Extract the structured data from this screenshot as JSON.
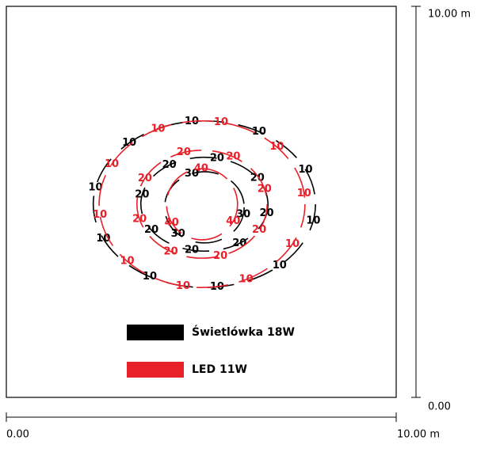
{
  "chart_data": {
    "type": "contour",
    "xlim": [
      0,
      10
    ],
    "ylim": [
      0,
      10
    ],
    "xticks": [
      {
        "value": 0,
        "label": "0.00"
      },
      {
        "value": 10,
        "label": "10.00 m"
      }
    ],
    "yticks": [
      {
        "value": 0,
        "label": "0.00"
      },
      {
        "value": 10,
        "label": "10.00 m"
      }
    ],
    "series": [
      {
        "name": "Świetlówka 18W",
        "color": "#000000",
        "contours": [
          {
            "level": 10,
            "cx": 5.08,
            "cy": 4.94,
            "rx": 2.85,
            "ry": 2.13
          },
          {
            "level": 20,
            "cx": 5.08,
            "cy": 4.94,
            "rx": 1.63,
            "ry": 1.2
          },
          {
            "level": 30,
            "cx": 5.08,
            "cy": 4.86,
            "rx": 1.02,
            "ry": 0.91
          }
        ]
      },
      {
        "name": "LED 11W",
        "color": "#e8202a",
        "contours": [
          {
            "level": 10,
            "cx": 5.02,
            "cy": 4.94,
            "rx": 2.64,
            "ry": 2.13
          },
          {
            "level": 20,
            "cx": 5.02,
            "cy": 4.94,
            "rx": 1.67,
            "ry": 1.38
          },
          {
            "level": 40,
            "cx": 5.02,
            "cy": 4.94,
            "rx": 0.91,
            "ry": 0.91
          }
        ]
      }
    ]
  }
}
